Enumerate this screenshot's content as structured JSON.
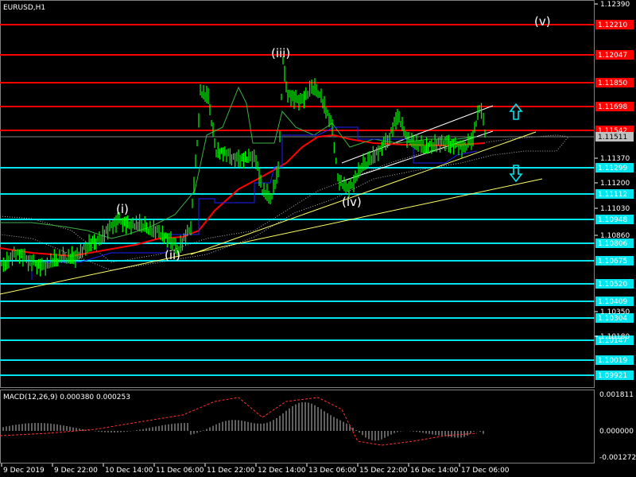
{
  "window": {
    "title": "EURUSD,H1"
  },
  "macd": {
    "label": "MACD(12,26,9) 0.000380 0.000253",
    "levels": [
      "0.001811",
      "0.000000",
      "-0.001272"
    ]
  },
  "price_axis": {
    "ticks": [
      "1.12390",
      "1.11370",
      "1.11200",
      "1.11030",
      "1.10860",
      "1.10350",
      "1.10180"
    ]
  },
  "levels": {
    "resistance": [
      {
        "label": "1.12210",
        "color": "#ff0000"
      },
      {
        "label": "1.12047",
        "color": "#ff0000"
      },
      {
        "label": "1.11850",
        "color": "#ff0000"
      },
      {
        "label": "1.11698",
        "color": "#ff0000"
      },
      {
        "label": "1.11542",
        "color": "#ff0000"
      }
    ],
    "current_price": {
      "label": "1.11511",
      "color": "#c0c0c0"
    },
    "support": [
      {
        "label": "1.11299",
        "color": "#00e5ee"
      },
      {
        "label": "1.11112",
        "color": "#00e5ee"
      },
      {
        "label": "1.10948",
        "color": "#00e5ee"
      },
      {
        "label": "1.10806",
        "color": "#00e5ee"
      },
      {
        "label": "1.10675",
        "color": "#00e5ee"
      },
      {
        "label": "1.10520",
        "color": "#00e5ee"
      },
      {
        "label": "1.10409",
        "color": "#00e5ee"
      },
      {
        "label": "1.10304",
        "color": "#00e5ee"
      },
      {
        "label": "1.10147",
        "color": "#00e5ee"
      },
      {
        "label": "1.10019",
        "color": "#00e5ee"
      },
      {
        "label": "1.09921",
        "color": "#00e5ee"
      }
    ]
  },
  "time_axis": {
    "ticks": [
      "9 Dec 2019",
      "9 Dec 22:00",
      "10 Dec 14:00",
      "11 Dec 06:00",
      "11 Dec 22:00",
      "12 Dec 14:00",
      "13 Dec 06:00",
      "15 Dec 22:00",
      "16 Dec 14:00",
      "17 Dec 06:00"
    ]
  },
  "waves": {
    "w1": "(i)",
    "w2": "(ii)",
    "w3": "(iii)",
    "w4": "(iv)",
    "w5": "(v)"
  },
  "icons": {
    "up": "up-arrow-icon",
    "down": "down-arrow-icon"
  },
  "colors": {
    "candles": "#00ff00",
    "ma": "#ff0000",
    "grid_support": "#00e5ee",
    "trend": "#ffff66",
    "signal": "#0000ff"
  }
}
